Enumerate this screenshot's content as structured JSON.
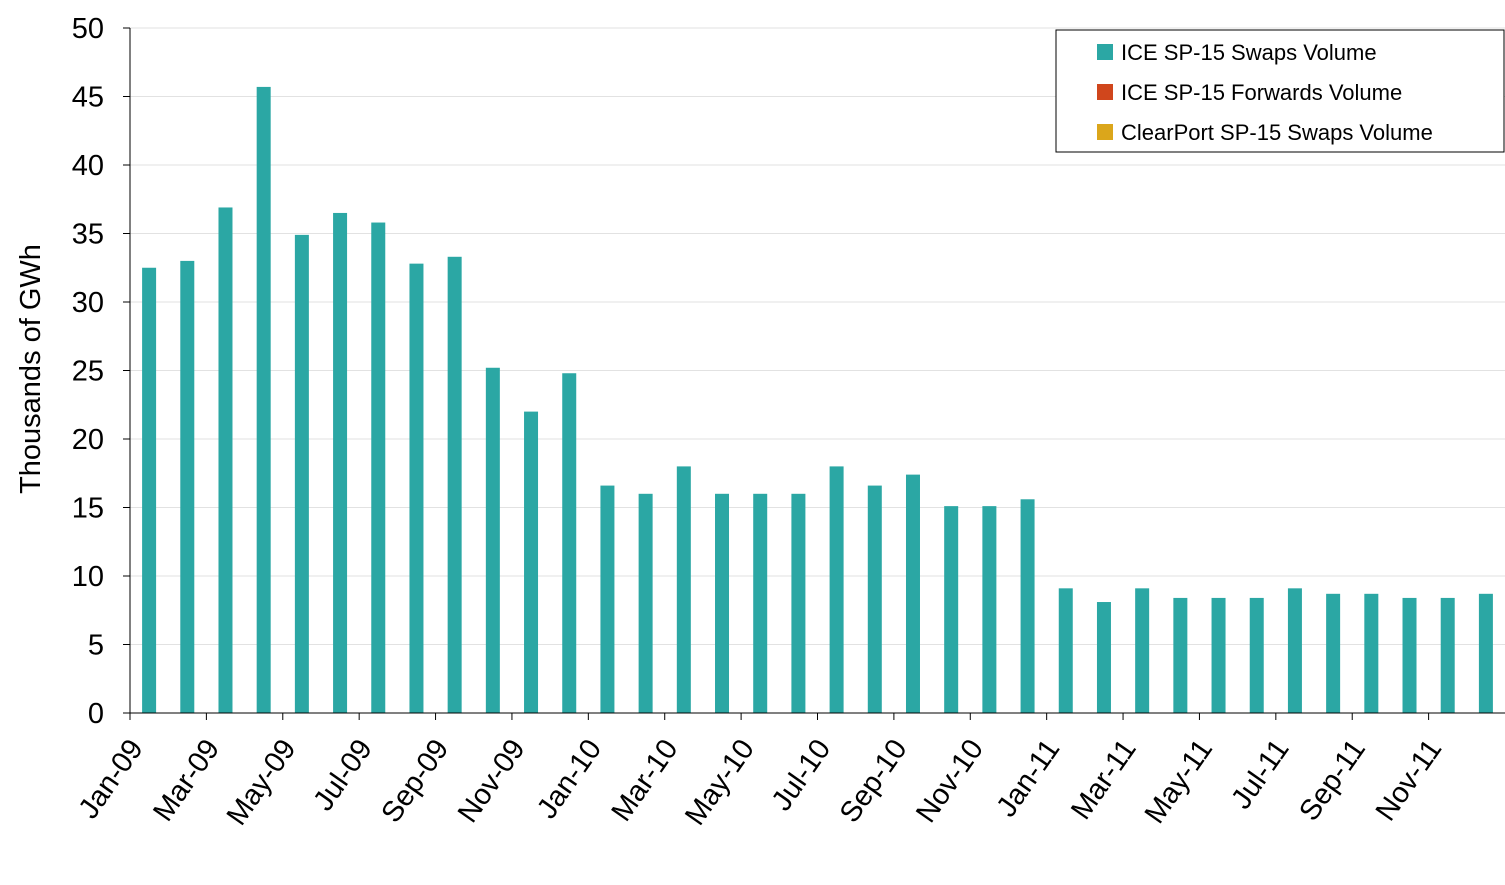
{
  "chart_data": {
    "type": "bar",
    "title": "",
    "xlabel": "",
    "ylabel": "Thousands of GWh",
    "ylim": [
      0,
      50
    ],
    "yticks": [
      0,
      5,
      10,
      15,
      20,
      25,
      30,
      35,
      40,
      45,
      50
    ],
    "grid": true,
    "legend_position": "top-right",
    "categories": [
      "Jan-09",
      "Feb-09",
      "Mar-09",
      "Apr-09",
      "May-09",
      "Jun-09",
      "Jul-09",
      "Aug-09",
      "Sep-09",
      "Oct-09",
      "Nov-09",
      "Dec-09",
      "Jan-10",
      "Feb-10",
      "Mar-10",
      "Apr-10",
      "May-10",
      "Jun-10",
      "Jul-10",
      "Aug-10",
      "Sep-10",
      "Oct-10",
      "Nov-10",
      "Dec-10",
      "Jan-11",
      "Feb-11",
      "Mar-11",
      "Apr-11",
      "May-11",
      "Jun-11",
      "Jul-11",
      "Aug-11",
      "Sep-11",
      "Oct-11",
      "Nov-11",
      "Dec-11"
    ],
    "x_tick_labels": [
      "Jan-09",
      "Mar-09",
      "May-09",
      "Jul-09",
      "Sep-09",
      "Nov-09",
      "Jan-10",
      "Mar-10",
      "May-10",
      "Jul-10",
      "Sep-10",
      "Nov-10",
      "Jan-11",
      "Mar-11",
      "May-11",
      "Jul-11",
      "Sep-11",
      "Nov-11"
    ],
    "series": [
      {
        "name": "ICE SP-15 Swaps Volume",
        "color": "#2ba7a4",
        "values": [
          32.5,
          33.0,
          36.9,
          45.7,
          34.9,
          36.5,
          35.8,
          32.8,
          33.3,
          25.2,
          22.0,
          24.8,
          16.6,
          16.0,
          18.0,
          16.0,
          16.0,
          16.0,
          18.0,
          16.6,
          17.4,
          15.1,
          15.1,
          15.6,
          9.1,
          8.1,
          9.1,
          8.4,
          8.4,
          8.4,
          9.1,
          8.7,
          8.7,
          8.4,
          8.4,
          8.7
        ]
      },
      {
        "name": "ICE SP-15 Forwards Volume",
        "color": "#d0461c",
        "values": [
          0,
          0,
          0,
          0,
          0,
          0,
          0,
          0,
          0,
          0,
          0,
          0,
          0,
          0,
          0,
          0,
          0,
          0,
          0,
          0,
          0,
          0,
          0,
          0,
          0,
          0,
          0,
          0,
          0,
          0,
          0,
          0,
          0,
          0,
          0,
          0
        ]
      },
      {
        "name": "ClearPort SP-15 Swaps Volume",
        "color": "#dba61b",
        "values": [
          0,
          0,
          0,
          0,
          0,
          0,
          0,
          0,
          0,
          0,
          0,
          0,
          0,
          0,
          0,
          0,
          0,
          0,
          0,
          0,
          0,
          0,
          0,
          0,
          0,
          0,
          0,
          0,
          0,
          0,
          0,
          0,
          0,
          0,
          0,
          0
        ]
      }
    ]
  }
}
